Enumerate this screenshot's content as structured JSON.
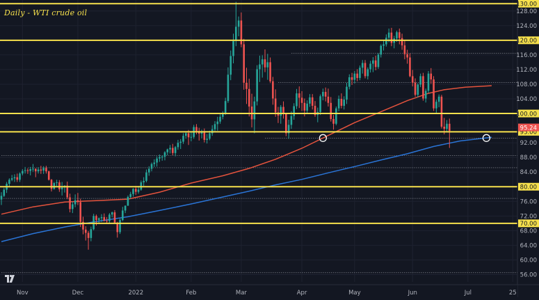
{
  "chart_data": {
    "type": "candlestick",
    "title": "Daily - WTI crude oil",
    "ylim": [
      54,
      131
    ],
    "yticks": [
      56,
      60,
      64,
      68,
      72,
      76,
      80,
      84,
      88,
      92,
      96,
      100,
      104,
      108,
      112,
      116,
      120,
      124,
      128
    ],
    "ytick_labels": [
      "56.00",
      "60.00",
      "64.00",
      "68.00",
      "72.00",
      "76.00",
      "80.00",
      "84.00",
      "88.00",
      "92.00",
      "96.00",
      "100.00",
      "104.00",
      "108.00",
      "112.00",
      "116.00",
      "120.00",
      "124.00",
      "128.00"
    ],
    "xticks": [
      {
        "label": "Nov",
        "index": 8
      },
      {
        "label": "Dec",
        "index": 29
      },
      {
        "label": "2022",
        "index": 51
      },
      {
        "label": "Feb",
        "index": 72
      },
      {
        "label": "Mar",
        "index": 91
      },
      {
        "label": "Apr",
        "index": 114
      },
      {
        "label": "May",
        "index": 134
      },
      {
        "label": "Jun",
        "index": 156
      },
      {
        "label": "Jul",
        "index": 177
      },
      {
        "label": "25",
        "index": 194
      }
    ],
    "levels": [
      {
        "value": 130,
        "label": "130.00",
        "style": "major"
      },
      {
        "value": 120,
        "label": "120.00",
        "style": "major"
      },
      {
        "value": 100,
        "label": "100.00",
        "style": "major"
      },
      {
        "value": 95,
        "label": "95.00",
        "style": "major"
      },
      {
        "value": 80,
        "label": "80.00",
        "style": "major"
      },
      {
        "value": 70,
        "label": "70.00",
        "style": "major"
      }
    ],
    "minor_levels": [
      {
        "value": 116.5,
        "from_index": 110
      },
      {
        "value": 108.5,
        "from_index": 105
      },
      {
        "value": 93.3,
        "from_index": 100
      },
      {
        "value": 88.5,
        "from_index": 0
      },
      {
        "value": 85.2,
        "from_index": 10
      },
      {
        "value": 76.8,
        "from_index": 0
      },
      {
        "value": 56.5,
        "from_index": 0
      }
    ],
    "last_price": {
      "value": 95.24,
      "label": "95.24"
    },
    "markers": [
      {
        "index": 122,
        "value": 93.3,
        "shape": "circle"
      },
      {
        "index": 184,
        "value": 93.3,
        "shape": "circle"
      }
    ],
    "ma_series": [
      {
        "name": "",
        "color": "#e5533d",
        "points": [
          [
            0,
            72.5
          ],
          [
            12,
            74.5
          ],
          [
            24,
            75.8
          ],
          [
            36,
            76.2
          ],
          [
            48,
            76.6
          ],
          [
            60,
            78.5
          ],
          [
            72,
            81
          ],
          [
            84,
            83
          ],
          [
            94,
            85
          ],
          [
            104,
            87.5
          ],
          [
            114,
            90.5
          ],
          [
            124,
            94
          ],
          [
            134,
            97.5
          ],
          [
            144,
            100.5
          ],
          [
            154,
            103.5
          ],
          [
            162,
            105.5
          ],
          [
            168,
            106.5
          ],
          [
            176,
            107.2
          ],
          [
            186,
            107.6
          ]
        ]
      },
      {
        "name": "",
        "color": "#2a74d6",
        "points": [
          [
            0,
            65
          ],
          [
            12,
            67.2
          ],
          [
            24,
            69
          ],
          [
            36,
            70.5
          ],
          [
            48,
            71.8
          ],
          [
            60,
            73.5
          ],
          [
            72,
            75.3
          ],
          [
            84,
            77.2
          ],
          [
            94,
            78.8
          ],
          [
            104,
            80.5
          ],
          [
            114,
            82
          ],
          [
            124,
            83.8
          ],
          [
            134,
            85.5
          ],
          [
            144,
            87.3
          ],
          [
            154,
            89
          ],
          [
            164,
            91
          ],
          [
            174,
            92.5
          ],
          [
            186,
            93.5
          ]
        ]
      }
    ],
    "candles": {
      "up_color": "#26a69a",
      "down_color": "#ef5350",
      "ohlc": [
        [
          76.5,
          78.5,
          75,
          77.5
        ],
        [
          77.5,
          79.7,
          77.2,
          79.2
        ],
        [
          79.2,
          81.3,
          78.3,
          80.8
        ],
        [
          80.8,
          82.3,
          80.1,
          81.9
        ],
        [
          81.9,
          83.2,
          81.5,
          82.3
        ],
        [
          82.3,
          83.4,
          81.3,
          82.6
        ],
        [
          82.6,
          83.6,
          81.3,
          81.9
        ],
        [
          81.9,
          83.9,
          81.3,
          83.6
        ],
        [
          83.6,
          84.8,
          83.1,
          84.3
        ],
        [
          84.3,
          85.4,
          83.6,
          84.5
        ],
        [
          84.5,
          85,
          83.5,
          84.3
        ],
        [
          84.3,
          85.4,
          83.1,
          84.8
        ],
        [
          84.8,
          86.2,
          84.1,
          84.9
        ],
        [
          84.9,
          85,
          82.6,
          84.2
        ],
        [
          84.2,
          85.3,
          83.6,
          84.7
        ],
        [
          84.7,
          85.7,
          83.5,
          84.4
        ],
        [
          84.4,
          85.6,
          83.5,
          85.1
        ],
        [
          85.1,
          85.7,
          83.6,
          84.2
        ],
        [
          84.2,
          84.4,
          81.7,
          81.9
        ],
        [
          81.9,
          82.1,
          78.7,
          79.4
        ],
        [
          79.4,
          81.3,
          79.2,
          81
        ],
        [
          81,
          81.9,
          80.2,
          81.2
        ],
        [
          81.2,
          81.8,
          78.6,
          79.3
        ],
        [
          79.3,
          81.3,
          77.6,
          79.8
        ],
        [
          79.8,
          80.4,
          78.4,
          80.3
        ],
        [
          80.3,
          81.4,
          76.6,
          77.1
        ],
        [
          77.1,
          78.1,
          73,
          73.9
        ],
        [
          73.9,
          75.9,
          72.8,
          75.2
        ],
        [
          75.2,
          77.9,
          74.4,
          76.3
        ],
        [
          76.3,
          78.3,
          75,
          75.8
        ],
        [
          75.8,
          76.7,
          69,
          70.4
        ],
        [
          70.4,
          71.8,
          67,
          68.3
        ],
        [
          68.3,
          69.2,
          65.3,
          67.4
        ],
        [
          67.4,
          67.9,
          62.8,
          66
        ],
        [
          66,
          69.1,
          65.1,
          68.4
        ],
        [
          68.4,
          72.6,
          68.1,
          72
        ],
        [
          72,
          72.4,
          69.4,
          70.9
        ],
        [
          70.9,
          71.6,
          70.1,
          71.4
        ],
        [
          71.4,
          72.5,
          70.4,
          71.7
        ],
        [
          71.7,
          72.7,
          70.5,
          70.7
        ],
        [
          70.7,
          71.7,
          69.9,
          70.6
        ],
        [
          70.6,
          72.8,
          70,
          72.4
        ],
        [
          72.4,
          73.2,
          71.6,
          73
        ],
        [
          73,
          73.6,
          69.9,
          70.2
        ],
        [
          70.2,
          70.4,
          66.1,
          67.6
        ],
        [
          67.6,
          71.3,
          67.1,
          70.9
        ],
        [
          70.9,
          74.5,
          70.6,
          73.5
        ],
        [
          73.5,
          74.9,
          72.8,
          74.8
        ],
        [
          74.8,
          77.6,
          74.8,
          77.2
        ],
        [
          77.2,
          78.6,
          76.7,
          78
        ],
        [
          78,
          79.6,
          77.3,
          79.4
        ],
        [
          79.4,
          80.2,
          77.8,
          78.6
        ],
        [
          78.6,
          80.2,
          78.1,
          79.2
        ],
        [
          79.2,
          81.7,
          78.9,
          81.2
        ],
        [
          81.2,
          82.6,
          80.2,
          81.6
        ],
        [
          81.6,
          84.7,
          81.2,
          83.9
        ],
        [
          83.9,
          85.6,
          83,
          84.9
        ],
        [
          84.9,
          86.6,
          84.2,
          86.2
        ],
        [
          86.2,
          87.5,
          85.4,
          86.6
        ],
        [
          86.6,
          88.3,
          85.5,
          87.7
        ],
        [
          87.7,
          88.8,
          86.8,
          88.1
        ],
        [
          88.1,
          88.6,
          87.1,
          88.2
        ],
        [
          88.2,
          89.7,
          87.2,
          89.4
        ],
        [
          89.4,
          90.4,
          88.6,
          90.2
        ],
        [
          90.2,
          91.4,
          89.1,
          90.6
        ],
        [
          90.6,
          91.7,
          88.6,
          89.2
        ],
        [
          89.2,
          91.1,
          88.3,
          90.8
        ],
        [
          90.8,
          92.8,
          90.1,
          92
        ],
        [
          92,
          93,
          90.3,
          92.3
        ],
        [
          92.3,
          94.6,
          91.7,
          93.9
        ],
        [
          93.9,
          94.9,
          93.1,
          94.6
        ],
        [
          94.6,
          95.5,
          91.4,
          93.5
        ],
        [
          93.5,
          95.1,
          92.4,
          93.6
        ],
        [
          93.6,
          96.9,
          93.1,
          96.3
        ],
        [
          96.3,
          97.1,
          94.3,
          95.2
        ],
        [
          95.2,
          96.1,
          92.6,
          94.5
        ],
        [
          94.5,
          95.6,
          93.2,
          95.1
        ],
        [
          95.1,
          95.9,
          92.1,
          92.8
        ],
        [
          92.8,
          94.4,
          91.8,
          93.1
        ],
        [
          93.1,
          95.3,
          92.7,
          94.6
        ],
        [
          94.6,
          96.8,
          93.9,
          95.7
        ],
        [
          95.7,
          97.9,
          95.2,
          97.1
        ],
        [
          97.1,
          99.1,
          95.3,
          97.8
        ],
        [
          97.8,
          99.8,
          97.2,
          99.1
        ],
        [
          99.1,
          100.6,
          98.4,
          100.1
        ],
        [
          100.1,
          104.3,
          99.6,
          103.4
        ],
        [
          103.4,
          112.6,
          102.9,
          110.6
        ],
        [
          110.6,
          117.2,
          109.1,
          115.7
        ],
        [
          115.7,
          121.8,
          113.7,
          119.8
        ],
        [
          119.8,
          130.5,
          118.4,
          123.7
        ],
        [
          123.7,
          126.5,
          121.1,
          125.4
        ],
        [
          125.4,
          127.6,
          118.1,
          118.9
        ],
        [
          118.9,
          120.4,
          106.5,
          108.4
        ],
        [
          108.4,
          112.5,
          102.6,
          106.7
        ],
        [
          106.7,
          109.5,
          99.2,
          101.9
        ],
        [
          101.9,
          105.4,
          96.2,
          98.4
        ],
        [
          98.4,
          104.6,
          94.6,
          103.3
        ],
        [
          103.3,
          113.2,
          102.2,
          112.1
        ],
        [
          112.1,
          115.8,
          108.6,
          113.4
        ],
        [
          113.4,
          115.9,
          109.8,
          114.8
        ],
        [
          114.8,
          117.5,
          111.3,
          112.6
        ],
        [
          112.6,
          116.3,
          109.2,
          114
        ],
        [
          114,
          115.3,
          108.3,
          108.8
        ],
        [
          108.8,
          110,
          102.4,
          104.1
        ],
        [
          104.1,
          106.6,
          99.1,
          100.3
        ],
        [
          100.3,
          101.8,
          97.4,
          99.4
        ],
        [
          99.4,
          102.3,
          97.2,
          101.8
        ],
        [
          101.8,
          103.3,
          98.6,
          100.1
        ],
        [
          100.1,
          100.2,
          93.8,
          94.6
        ],
        [
          94.6,
          98.3,
          93.1,
          96.9
        ],
        [
          96.9,
          100.6,
          95.8,
          99.3
        ],
        [
          99.3,
          102.8,
          98.3,
          102
        ],
        [
          102,
          106.7,
          101.2,
          105.5
        ],
        [
          105.5,
          107.4,
          101.5,
          104.3
        ],
        [
          104.3,
          106.1,
          100.7,
          102.9
        ],
        [
          102.9,
          104.1,
          99.2,
          100.8
        ],
        [
          100.8,
          103.6,
          99.9,
          102.7
        ],
        [
          102.7,
          105.3,
          101.8,
          104.4
        ],
        [
          104.4,
          105.3,
          101.1,
          102.1
        ],
        [
          102.1,
          103.4,
          99.1,
          99.6
        ],
        [
          99.6,
          101.6,
          97.6,
          100.4
        ],
        [
          100.4,
          105.2,
          99.6,
          104.7
        ],
        [
          104.7,
          106.8,
          103.6,
          105.9
        ],
        [
          105.9,
          107.1,
          103.3,
          104.6
        ],
        [
          104.6,
          106.8,
          101.9,
          102.9
        ],
        [
          102.9,
          104.5,
          97.8,
          98.5
        ],
        [
          98.5,
          99.6,
          95.6,
          97.2
        ],
        [
          97.2,
          101.9,
          96.8,
          101.4
        ],
        [
          101.4,
          104.9,
          100.6,
          104
        ],
        [
          104,
          105.5,
          101.4,
          102.1
        ],
        [
          102.1,
          104.7,
          101.1,
          103.8
        ],
        [
          103.8,
          108.4,
          102.6,
          107.3
        ],
        [
          107.3,
          110.7,
          106.6,
          109.9
        ],
        [
          109.9,
          111.1,
          107.8,
          109.2
        ],
        [
          109.2,
          111.6,
          108.2,
          110.9
        ],
        [
          110.9,
          112.1,
          108.8,
          109.7
        ],
        [
          109.7,
          113.1,
          109.1,
          112.5
        ],
        [
          112.5,
          114.6,
          110.9,
          113.8
        ],
        [
          113.8,
          114.6,
          109.6,
          110.2
        ],
        [
          110.2,
          112.6,
          109.3,
          112.1
        ],
        [
          112.1,
          114.4,
          111.2,
          113.6
        ],
        [
          113.6,
          115.4,
          111.3,
          114.5
        ],
        [
          114.5,
          115.8,
          111.8,
          112.7
        ],
        [
          112.7,
          116.5,
          112.2,
          116.1
        ],
        [
          116.1,
          118.9,
          115.3,
          118.5
        ],
        [
          118.5,
          119.9,
          117.2,
          118.9
        ],
        [
          118.9,
          121.6,
          118.3,
          120.7
        ],
        [
          120.7,
          123.2,
          119.5,
          122.1
        ],
        [
          122.1,
          123.4,
          118.4,
          119.3
        ],
        [
          119.3,
          121.2,
          117.8,
          120.5
        ],
        [
          120.5,
          122.6,
          119.6,
          122.2
        ],
        [
          122.2,
          123.2,
          118.9,
          120.6
        ],
        [
          120.6,
          121.8,
          117.4,
          118.6
        ],
        [
          118.6,
          120.1,
          114.8,
          116.2
        ],
        [
          116.2,
          117.4,
          113.6,
          115.3
        ],
        [
          115.3,
          116.4,
          109.9,
          110.2
        ],
        [
          110.2,
          111.9,
          107.4,
          108.4
        ],
        [
          108.4,
          109.6,
          104.6,
          105.1
        ],
        [
          105.1,
          108.3,
          104.4,
          107.9
        ],
        [
          107.9,
          110.9,
          107.2,
          110.2
        ],
        [
          110.2,
          111.1,
          103.5,
          104.1
        ],
        [
          104.1,
          106.8,
          103,
          106.2
        ],
        [
          106.2,
          111.6,
          105.6,
          110.9
        ],
        [
          110.9,
          112.4,
          108.1,
          109.3
        ],
        [
          109.3,
          110.2,
          100.7,
          101.4
        ],
        [
          101.4,
          103.8,
          99.9,
          103.2
        ],
        [
          103.2,
          105.2,
          101.7,
          104.6
        ],
        [
          104.6,
          105.1,
          95.9,
          96.4
        ],
        [
          96.4,
          98.8,
          94.3,
          95.8
        ],
        [
          95.8,
          98.2,
          94.9,
          97.2
        ],
        [
          97.2,
          98.6,
          90.6,
          95.24
        ]
      ]
    }
  }
}
